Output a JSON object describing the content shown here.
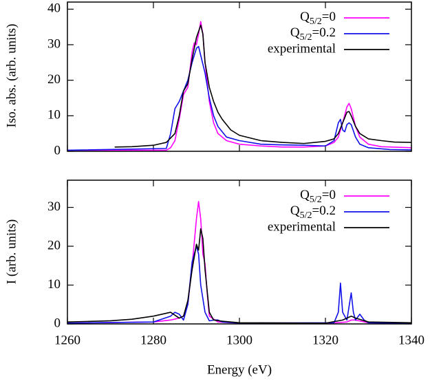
{
  "chart_data": [
    {
      "type": "line",
      "ylabel": "Iso. abs. (arb. units)",
      "xlim": [
        1260,
        1340
      ],
      "xticks": [
        1260,
        1280,
        1300,
        1320,
        1340
      ],
      "show_xtick_labels": false,
      "ylim": [
        0,
        42
      ],
      "yticks": [
        0,
        10,
        20,
        30,
        40
      ],
      "legend": "upper right",
      "series": [
        {
          "name": "Q5/2=0",
          "color": "#ff00ff",
          "x": [
            1260,
            1283,
            1284,
            1285,
            1286,
            1287,
            1288,
            1289,
            1289.5,
            1290,
            1290.5,
            1291,
            1291.5,
            1292,
            1293,
            1294,
            1295,
            1297,
            1300,
            1305,
            1310,
            1315,
            1320,
            1322,
            1323,
            1324,
            1325,
            1325.5,
            1326,
            1327,
            1328,
            1330,
            1333,
            1340
          ],
          "values": [
            0.3,
            0.3,
            1,
            3,
            9,
            16,
            18,
            28,
            30.5,
            30,
            33,
            36.5,
            33,
            25,
            14,
            8,
            5,
            3,
            2,
            1.5,
            1.2,
            1.2,
            1.5,
            2.5,
            4,
            8,
            12.5,
            13.5,
            12,
            7,
            4,
            2,
            1.3,
            1
          ]
        },
        {
          "name": "Q5/2=0.2",
          "color": "#1010e8",
          "x": [
            1260,
            1283,
            1284,
            1285,
            1286,
            1287,
            1288,
            1289,
            1290,
            1290.5,
            1291,
            1292,
            1293,
            1294,
            1295,
            1297,
            1300,
            1305,
            1310,
            1315,
            1320,
            1322,
            1323,
            1323.5,
            1324,
            1324.5,
            1325,
            1325.5,
            1326,
            1327,
            1328,
            1330,
            1335,
            1340
          ],
          "values": [
            0.3,
            0.8,
            5,
            12,
            14,
            17,
            20,
            25,
            29,
            29.5,
            27,
            22,
            15,
            10,
            7,
            4,
            3,
            2,
            1.8,
            1.7,
            1.5,
            3,
            8,
            9,
            6,
            5.5,
            7.5,
            8,
            7.5,
            4,
            2,
            1,
            0.5,
            0.4
          ]
        },
        {
          "name": "experimental",
          "color": "#000000",
          "x": [
            1271,
            1275,
            1280,
            1283,
            1285,
            1286,
            1287,
            1288,
            1289,
            1290,
            1291,
            1291.5,
            1292,
            1293,
            1294,
            1295,
            1296,
            1298,
            1300,
            1305,
            1310,
            1315,
            1320,
            1322,
            1323,
            1324,
            1325,
            1325.5,
            1326,
            1327,
            1328,
            1330,
            1333,
            1336,
            1340
          ],
          "values": [
            1.2,
            1.3,
            1.7,
            2.5,
            5,
            10,
            17,
            19,
            26,
            32,
            35.5,
            33,
            25,
            18,
            14,
            11,
            9,
            6,
            4.5,
            3,
            2.5,
            2.2,
            2.8,
            3.5,
            5,
            8,
            11,
            11.2,
            10,
            7,
            5,
            3.5,
            3,
            2.6,
            2.5
          ]
        }
      ]
    },
    {
      "type": "line",
      "xlabel": "Energy (eV)",
      "ylabel": "I (arb. units)",
      "xlim": [
        1260,
        1340
      ],
      "xticks": [
        1260,
        1280,
        1300,
        1320,
        1340
      ],
      "show_xtick_labels": true,
      "ylim": [
        0,
        37
      ],
      "yticks": [
        0,
        10,
        20,
        30
      ],
      "legend": "upper right",
      "series": [
        {
          "name": "Q5/2=0",
          "color": "#ff00ff",
          "x": [
            1260,
            1280,
            1284,
            1286,
            1287,
            1288,
            1289,
            1290,
            1290.5,
            1291,
            1291.5,
            1292,
            1292.5,
            1293,
            1295,
            1300,
            1320,
            1325,
            1326,
            1327,
            1330,
            1340
          ],
          "values": [
            0.2,
            0.5,
            1,
            1.5,
            2,
            5,
            15,
            27,
            31.5,
            27,
            18,
            15.5,
            8,
            2,
            0.5,
            0.2,
            0.1,
            0.5,
            1,
            1,
            0.3,
            0.1
          ]
        },
        {
          "name": "Q5/2=0.2",
          "color": "#1010e8",
          "x": [
            1260,
            1280,
            1284,
            1285,
            1286,
            1287,
            1288,
            1289,
            1290,
            1290.5,
            1291,
            1292,
            1293,
            1294,
            1295,
            1296,
            1300,
            1322,
            1323,
            1323.5,
            1324,
            1325,
            1326,
            1326.5,
            1327,
            1328,
            1329,
            1330,
            1340
          ],
          "values": [
            0.2,
            0.5,
            2,
            3,
            2.5,
            1,
            5,
            16,
            20,
            18,
            10,
            3,
            0.8,
            1,
            1,
            0.5,
            0.2,
            0.3,
            3,
            10.5,
            3,
            1,
            8,
            3,
            1,
            2.5,
            1,
            0.3,
            0.1
          ]
        },
        {
          "name": "experimental",
          "color": "#000000",
          "x": [
            1260,
            1270,
            1275,
            1280,
            1284,
            1286,
            1287,
            1288,
            1289,
            1290,
            1290.5,
            1291,
            1291.5,
            1292,
            1293,
            1294,
            1296,
            1300,
            1320,
            1324,
            1326,
            1327,
            1330,
            1340
          ],
          "values": [
            0.5,
            0.8,
            1.2,
            2,
            3,
            1.5,
            2,
            6,
            14,
            20.5,
            19,
            24.5,
            22,
            14,
            3,
            1,
            0.7,
            0.3,
            0.2,
            1,
            2,
            1.5,
            0.5,
            0.3
          ]
        }
      ]
    }
  ]
}
